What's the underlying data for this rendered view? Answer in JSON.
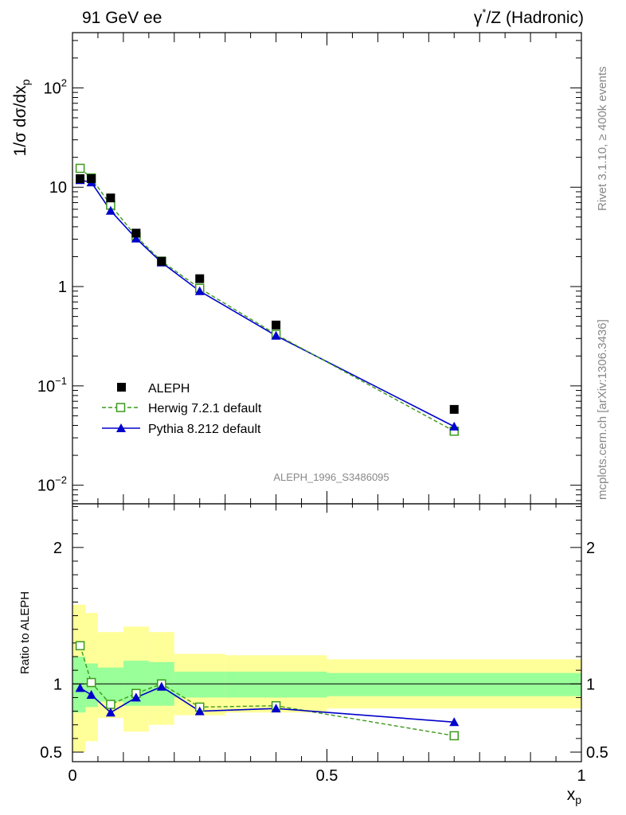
{
  "header": {
    "left_title": "91 GeV ee",
    "right_title_sym": "γ",
    "right_title_sup": "*",
    "right_title_rest": "/Z (Hadronic)"
  },
  "side_labels": {
    "rivet": "Rivet 3.1.10, ≥ 400k events",
    "mcplots": "mcplots.cern.ch [arXiv:1306.3436]"
  },
  "watermark": "ALEPH_1996_S3486095",
  "colors": {
    "data": "#000000",
    "herwig": "#3a9a1a",
    "pythia": "#0000cc",
    "band_inner": "#99ff99",
    "band_outer": "#ffff99"
  },
  "chart_data": [
    {
      "type": "scatter",
      "panel": "main",
      "yscale": "log",
      "ylabel": "1/σ dσ/dx",
      "ylabel_sub": "p",
      "xlim": [
        0,
        1
      ],
      "ylim": [
        0.0065,
        360
      ],
      "y_tick_labels": [
        {
          "v": 0.01,
          "base": "10",
          "exp": "−2"
        },
        {
          "v": 0.1,
          "base": "10",
          "exp": "−1"
        },
        {
          "v": 1,
          "text": "1"
        },
        {
          "v": 10,
          "text": "10"
        },
        {
          "v": 100,
          "base": "10",
          "exp": "2"
        }
      ],
      "legend_position": "lower-left",
      "series": [
        {
          "name": "ALEPH",
          "key": "data",
          "marker": "filled-square",
          "x": [
            0.015,
            0.037,
            0.075,
            0.125,
            0.175,
            0.25,
            0.4,
            0.75
          ],
          "y": [
            12.2,
            12.2,
            7.8,
            3.45,
            1.8,
            1.2,
            0.41,
            0.058
          ]
        },
        {
          "name": "Herwig 7.2.1 default",
          "key": "herwig",
          "marker": "open-square",
          "line": "dashed",
          "x": [
            0.015,
            0.037,
            0.075,
            0.125,
            0.175,
            0.25,
            0.4,
            0.75
          ],
          "y": [
            15.5,
            12.4,
            6.6,
            3.2,
            1.8,
            0.96,
            0.33,
            0.035
          ]
        },
        {
          "name": "Pythia 8.212 default",
          "key": "pythia",
          "marker": "filled-triangle",
          "line": "solid",
          "x": [
            0.015,
            0.037,
            0.075,
            0.125,
            0.175,
            0.25,
            0.4,
            0.75
          ],
          "y": [
            11.8,
            11.2,
            5.8,
            3.05,
            1.75,
            0.9,
            0.32,
            0.039
          ]
        }
      ]
    },
    {
      "type": "line",
      "panel": "ratio",
      "ylabel": "Ratio to ALEPH",
      "xlabel": "x",
      "xlabel_sub": "p",
      "xlim": [
        0,
        1
      ],
      "ylim": [
        0.43,
        2.32
      ],
      "y_tick_labels": [
        {
          "v": 0.5,
          "text": "0.5"
        },
        {
          "v": 1,
          "text": "1"
        },
        {
          "v": 2,
          "text": "2"
        }
      ],
      "x_tick_labels": [
        {
          "v": 0,
          "text": "0"
        },
        {
          "v": 0.5,
          "text": "0.5"
        },
        {
          "v": 1,
          "text": "1"
        }
      ],
      "bands": [
        {
          "x0": 0.0,
          "x1": 0.025,
          "inner": [
            0.79,
            1.2
          ],
          "outer": [
            0.5,
            1.58
          ]
        },
        {
          "x0": 0.025,
          "x1": 0.05,
          "inner": [
            0.83,
            1.15
          ],
          "outer": [
            0.58,
            1.52
          ]
        },
        {
          "x0": 0.05,
          "x1": 0.1,
          "inner": [
            0.87,
            1.12
          ],
          "outer": [
            0.75,
            1.38
          ]
        },
        {
          "x0": 0.1,
          "x1": 0.15,
          "inner": [
            0.84,
            1.17
          ],
          "outer": [
            0.65,
            1.42
          ]
        },
        {
          "x0": 0.15,
          "x1": 0.2,
          "inner": [
            0.84,
            1.16
          ],
          "outer": [
            0.7,
            1.38
          ]
        },
        {
          "x0": 0.2,
          "x1": 0.3,
          "inner": [
            0.9,
            1.09
          ],
          "outer": [
            0.77,
            1.22
          ]
        },
        {
          "x0": 0.3,
          "x1": 0.5,
          "inner": [
            0.9,
            1.09
          ],
          "outer": [
            0.79,
            1.21
          ]
        },
        {
          "x0": 0.5,
          "x1": 1.0,
          "inner": [
            0.91,
            1.08
          ],
          "outer": [
            0.82,
            1.18
          ]
        }
      ],
      "series": [
        {
          "name": "Herwig 7.2.1 default",
          "key": "herwig",
          "marker": "open-square",
          "line": "dashed",
          "x": [
            0.015,
            0.037,
            0.075,
            0.125,
            0.175,
            0.25,
            0.4,
            0.75
          ],
          "y": [
            1.28,
            1.01,
            0.85,
            0.93,
            1.0,
            0.83,
            0.84,
            0.62
          ]
        },
        {
          "name": "Pythia 8.212 default",
          "key": "pythia",
          "marker": "filled-triangle",
          "line": "solid",
          "x": [
            0.015,
            0.037,
            0.075,
            0.125,
            0.175,
            0.25,
            0.4,
            0.75
          ],
          "y": [
            0.97,
            0.92,
            0.79,
            0.9,
            0.98,
            0.8,
            0.82,
            0.72
          ]
        }
      ]
    }
  ]
}
